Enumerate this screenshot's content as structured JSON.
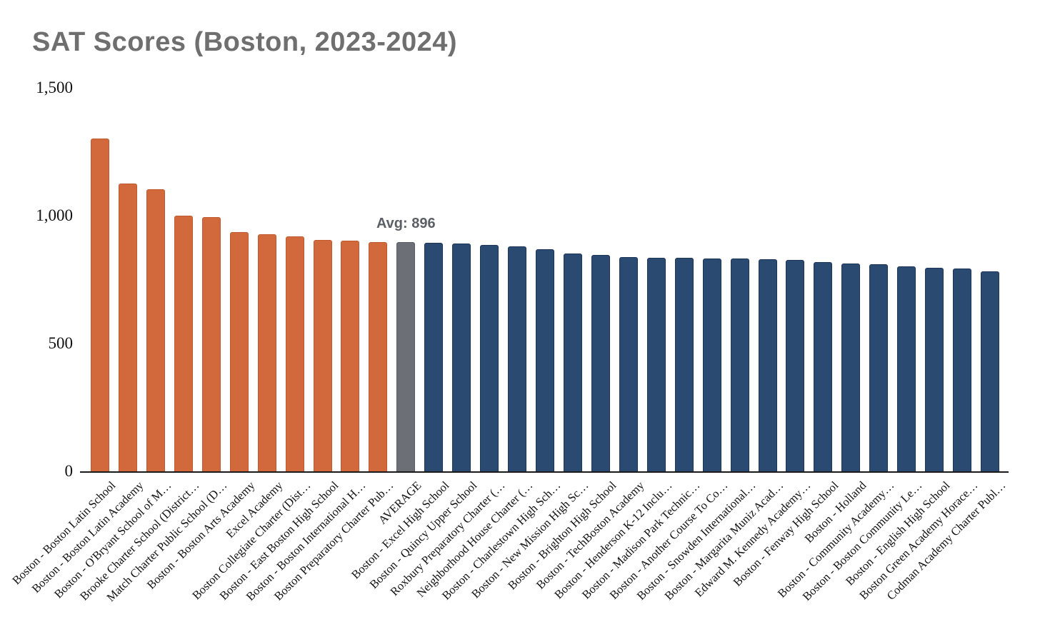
{
  "chart_data": {
    "type": "bar",
    "title": "SAT Scores (Boston, 2023-2024)",
    "xlabel": "",
    "ylabel": "",
    "ylim": [
      0,
      1500
    ],
    "grid": false,
    "legend": "none",
    "yticks": [
      {
        "value": 1500,
        "label": "1,500"
      },
      {
        "value": 1000,
        "label": "1,000"
      },
      {
        "value": 500,
        "label": "500"
      },
      {
        "value": 0,
        "label": "0"
      }
    ],
    "annotation": {
      "text": "Avg: 896",
      "anchor_bar": "AVERAGE",
      "average_value": 896
    },
    "colors": {
      "above_average": "#D2693C",
      "above_average_border": "#C05A2E",
      "average": "#6C6F75",
      "average_border": "#595C62",
      "below_average": "#2A4A72",
      "below_average_border": "#1C3557",
      "axis_line": "#1a1a1a",
      "title_text": "#6f6f6f",
      "annotation_text": "#5a6066"
    },
    "bars": [
      {
        "label": "Boston - Boston Latin School",
        "value": 1302,
        "group": "above_average"
      },
      {
        "label": "Boston - Boston Latin Academy",
        "value": 1125,
        "group": "above_average"
      },
      {
        "label": "Boston - O'Bryant School of M…",
        "value": 1103,
        "group": "above_average"
      },
      {
        "label": "Brooke Charter School (District…",
        "value": 1001,
        "group": "above_average"
      },
      {
        "label": "Match Charter Public School (D…",
        "value": 994,
        "group": "above_average"
      },
      {
        "label": "Boston - Boston Arts Academy",
        "value": 937,
        "group": "above_average"
      },
      {
        "label": "Excel Academy",
        "value": 927,
        "group": "above_average"
      },
      {
        "label": "Boston Collegiate Charter (Dist…",
        "value": 920,
        "group": "above_average"
      },
      {
        "label": "Boston - East Boston High School",
        "value": 906,
        "group": "above_average"
      },
      {
        "label": "Boston - Boston International H…",
        "value": 901,
        "group": "above_average"
      },
      {
        "label": "Boston Preparatory Charter Pub…",
        "value": 898,
        "group": "above_average"
      },
      {
        "label": "AVERAGE",
        "value": 896,
        "group": "average"
      },
      {
        "label": "Boston - Excel High School",
        "value": 894,
        "group": "below_average"
      },
      {
        "label": "Boston - Quincy Upper School",
        "value": 891,
        "group": "below_average"
      },
      {
        "label": "Roxbury Preparatory Charter (…",
        "value": 886,
        "group": "below_average"
      },
      {
        "label": "Neighborhood House Charter (…",
        "value": 880,
        "group": "below_average"
      },
      {
        "label": "Boston - Charlestown High Sch…",
        "value": 870,
        "group": "below_average"
      },
      {
        "label": "Boston - New Mission High Sc…",
        "value": 853,
        "group": "below_average"
      },
      {
        "label": "Boston - Brighton High School",
        "value": 846,
        "group": "below_average"
      },
      {
        "label": "Boston - TechBoston Academy",
        "value": 838,
        "group": "below_average"
      },
      {
        "label": "Boston - Henderson K-12 Inclu…",
        "value": 836,
        "group": "below_average"
      },
      {
        "label": "Boston - Madison Park Technic…",
        "value": 835,
        "group": "below_average"
      },
      {
        "label": "Boston - Another Course To Co…",
        "value": 833,
        "group": "below_average"
      },
      {
        "label": "Boston - Snowden International…",
        "value": 832,
        "group": "below_average"
      },
      {
        "label": "Boston - Margarita Muniz Acad…",
        "value": 830,
        "group": "below_average"
      },
      {
        "label": "Edward M. Kennedy Academy…",
        "value": 826,
        "group": "below_average"
      },
      {
        "label": "Boston - Fenway High School",
        "value": 818,
        "group": "below_average"
      },
      {
        "label": "Boston - Holland",
        "value": 812,
        "group": "below_average"
      },
      {
        "label": "Boston - Community Academy…",
        "value": 810,
        "group": "below_average"
      },
      {
        "label": "Boston - Boston Community Le…",
        "value": 802,
        "group": "below_average"
      },
      {
        "label": "Boston - English High School",
        "value": 797,
        "group": "below_average"
      },
      {
        "label": "Boston Green Academy Horace…",
        "value": 792,
        "group": "below_average"
      },
      {
        "label": "Codman Academy Charter Publ…",
        "value": 782,
        "group": "below_average"
      }
    ]
  }
}
